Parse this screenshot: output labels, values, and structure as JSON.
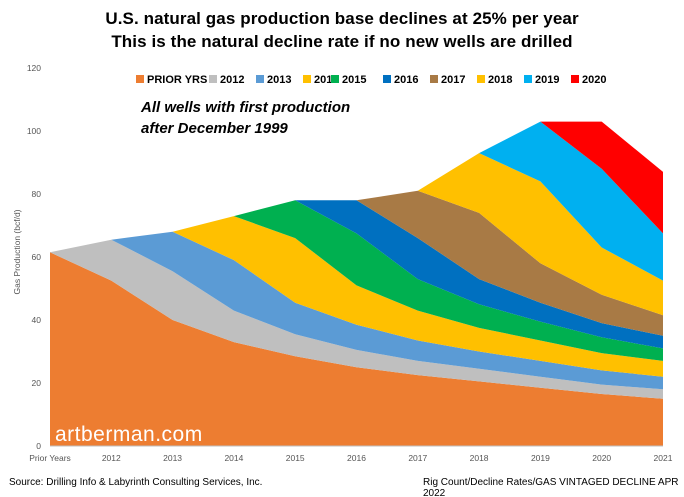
{
  "header": {
    "title_line1": "U.S. natural gas production base declines at 25% per year",
    "title_line2": "This is the natural decline rate if no new wells are drilled"
  },
  "annotation": {
    "line1": "All wells with first production",
    "line2": "after December 1999"
  },
  "watermark": "artberman.com",
  "footer": {
    "source": "Source: Drilling Info & Labyrinth Consulting Services, Inc.",
    "reference": "Rig Count/Decline Rates/GAS VINTAGED DECLINE APR 2022"
  },
  "colors": {
    "PRIOR YRS": "#ed7d31",
    "2012": "#bfbfbf",
    "2013": "#5b9bd5",
    "2014": "#ffc000",
    "2015": "#00b050",
    "2016": "#0070c0",
    "2017": "#a87a45",
    "2018": "#ffc000",
    "2019": "#00b0f0",
    "2020": "#ff0000"
  },
  "chart_data": {
    "type": "area",
    "stacked": true,
    "title": "U.S. natural gas production base declines at 25% per year",
    "subtitle": "This is the natural decline rate if no new wells are drilled",
    "xlabel": "",
    "ylabel": "Gas Production (bcf/d)",
    "ylim": [
      0,
      120
    ],
    "yticks": [
      0,
      20,
      40,
      60,
      80,
      100,
      120
    ],
    "grid": false,
    "legend_position": "top",
    "categories": [
      "Prior Years",
      "2012",
      "2013",
      "2014",
      "2015",
      "2016",
      "2017",
      "2018",
      "2019",
      "2020",
      "2021"
    ],
    "series": [
      {
        "name": "PRIOR YRS",
        "values": [
          61.5,
          52.5,
          40,
          33,
          28.5,
          25,
          22.5,
          20.5,
          18.5,
          16.5,
          15
        ]
      },
      {
        "name": "2012",
        "values": [
          0,
          13,
          15.5,
          10,
          7,
          5.5,
          4.5,
          4,
          3.5,
          3,
          3
        ]
      },
      {
        "name": "2013",
        "values": [
          0,
          0,
          12.5,
          16,
          10,
          8,
          6.5,
          5.5,
          5,
          4.5,
          4
        ]
      },
      {
        "name": "2014",
        "values": [
          0,
          0,
          0,
          14,
          20.5,
          12.5,
          9.5,
          7.5,
          6.5,
          5.5,
          5
        ]
      },
      {
        "name": "2015",
        "values": [
          0,
          0,
          0,
          0,
          12,
          16.5,
          10,
          7.5,
          6,
          5,
          4
        ]
      },
      {
        "name": "2016",
        "values": [
          0,
          0,
          0,
          0,
          0,
          10.5,
          13,
          8,
          6,
          4.5,
          4
        ]
      },
      {
        "name": "2017",
        "values": [
          0,
          0,
          0,
          0,
          0,
          0,
          15,
          21,
          12.5,
          9,
          6.5
        ]
      },
      {
        "name": "2018",
        "values": [
          0,
          0,
          0,
          0,
          0,
          0,
          0,
          19,
          26,
          15,
          11
        ]
      },
      {
        "name": "2019",
        "values": [
          0,
          0,
          0,
          0,
          0,
          0,
          0,
          0,
          19,
          25,
          15
        ]
      },
      {
        "name": "2020",
        "values": [
          0,
          0,
          0,
          0,
          0,
          0,
          0,
          0,
          0,
          15,
          19.5
        ]
      }
    ]
  }
}
